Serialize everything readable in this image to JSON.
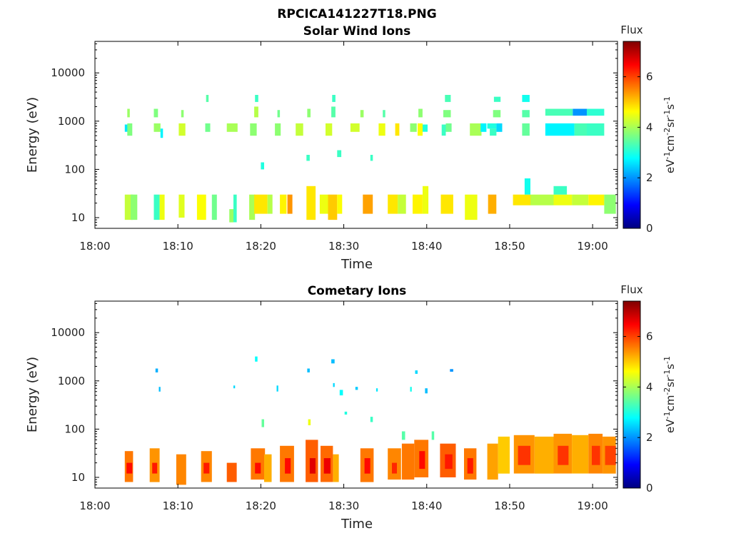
{
  "window": {
    "title": "RPCICA141227T18.PNG"
  },
  "colors": {
    "colormap": [
      "#00007f",
      "#0000ff",
      "#007fff",
      "#00ffff",
      "#7fff7f",
      "#ffff00",
      "#ff7f00",
      "#ff0000",
      "#7f0000"
    ],
    "frame": "#000000",
    "background": "#ffffff"
  },
  "chart_data": [
    {
      "type": "heatmap",
      "title": "Solar Wind Ions",
      "xlabel": "Time",
      "ylabel": "Energy (eV)",
      "x_unit": "minutes after 18:00",
      "xlim": [
        0,
        63
      ],
      "xticks": [
        0,
        10,
        20,
        30,
        40,
        50,
        60
      ],
      "xtick_labels": [
        "18:00",
        "18:10",
        "18:20",
        "18:30",
        "18:40",
        "18:50",
        "19:00"
      ],
      "y_scale": "log",
      "ylim": [
        6,
        45000
      ],
      "yticks": [
        10,
        100,
        1000,
        10000
      ],
      "ytick_labels": [
        "10",
        "100",
        "1000",
        "10000"
      ],
      "colorbar": {
        "label": "Flux",
        "unit_label": "eV-1cm-2sr-1s-1",
        "range": [
          0,
          7.4
        ],
        "ticks": [
          0,
          2,
          4,
          6
        ],
        "tick_labels": [
          "0",
          "2",
          "4",
          "6"
        ]
      },
      "cells": [
        [
          3.6,
          4.6,
          9,
          30,
          4.2
        ],
        [
          4.3,
          5.1,
          9,
          30,
          3.8
        ],
        [
          7.1,
          7.8,
          9,
          30,
          3.2
        ],
        [
          7.8,
          8.4,
          9,
          30,
          4.5
        ],
        [
          10.1,
          10.8,
          10,
          30,
          4.4
        ],
        [
          12.3,
          13.4,
          9,
          30,
          4.6
        ],
        [
          14.1,
          14.7,
          9,
          30,
          3.6
        ],
        [
          16.2,
          16.7,
          8,
          15,
          3.9
        ],
        [
          16.7,
          17.1,
          8,
          30,
          3.2
        ],
        [
          18.6,
          19.3,
          9,
          30,
          4.0
        ],
        [
          19.2,
          20.8,
          12,
          30,
          4.8
        ],
        [
          20.8,
          21.4,
          12,
          30,
          4.1
        ],
        [
          22.3,
          23.1,
          12,
          30,
          4.7
        ],
        [
          23.2,
          23.8,
          12,
          30,
          5.4
        ],
        [
          25.5,
          26.6,
          9,
          45,
          4.8
        ],
        [
          27.1,
          28.1,
          12,
          30,
          4.5
        ],
        [
          28.1,
          29.2,
          9,
          30,
          5.0
        ],
        [
          29.2,
          29.8,
          12,
          30,
          4.6
        ],
        [
          32.3,
          33.5,
          12,
          30,
          5.3
        ],
        [
          35.3,
          36.5,
          12,
          30,
          4.8
        ],
        [
          36.5,
          37.5,
          12,
          30,
          4.2
        ],
        [
          38.3,
          39.5,
          12,
          30,
          4.7
        ],
        [
          39.5,
          40.2,
          12,
          45,
          4.5
        ],
        [
          41.7,
          43.2,
          12,
          30,
          4.8
        ],
        [
          44.6,
          46.1,
          9,
          30,
          4.5
        ],
        [
          47.4,
          48.4,
          12,
          30,
          5.2
        ],
        [
          50.4,
          52.5,
          18,
          30,
          4.8
        ],
        [
          52.5,
          55.3,
          18,
          30,
          4.1
        ],
        [
          55.3,
          57.5,
          18,
          30,
          4.5
        ],
        [
          57.5,
          59.5,
          18,
          30,
          4.2
        ],
        [
          59.5,
          61.4,
          18,
          30,
          4.7
        ],
        [
          61.4,
          62.8,
          12,
          30,
          3.8
        ],
        [
          51.8,
          52.5,
          30,
          65,
          2.9
        ],
        [
          55.3,
          56.9,
          30,
          45,
          3.2
        ],
        [
          3.6,
          4.0,
          600,
          850,
          2.6
        ],
        [
          3.9,
          4.5,
          500,
          900,
          3.7
        ],
        [
          3.9,
          4.2,
          1200,
          1800,
          3.9
        ],
        [
          7.1,
          7.9,
          600,
          900,
          3.9
        ],
        [
          7.1,
          7.6,
          1200,
          1800,
          3.7
        ],
        [
          7.9,
          8.2,
          450,
          700,
          2.7
        ],
        [
          10.1,
          10.9,
          500,
          900,
          4.3
        ],
        [
          10.4,
          10.7,
          1200,
          1700,
          3.8
        ],
        [
          13.3,
          13.9,
          600,
          900,
          3.6
        ],
        [
          13.4,
          13.7,
          2500,
          3500,
          3.4
        ],
        [
          15.9,
          17.2,
          600,
          900,
          4.0
        ],
        [
          18.7,
          19.5,
          500,
          900,
          3.8
        ],
        [
          19.2,
          19.7,
          1200,
          2000,
          4.1
        ],
        [
          19.3,
          19.7,
          2500,
          3500,
          3.2
        ],
        [
          21.7,
          22.4,
          500,
          900,
          3.8
        ],
        [
          22.0,
          22.3,
          1200,
          1700,
          3.6
        ],
        [
          24.2,
          25.1,
          500,
          900,
          4.2
        ],
        [
          25.6,
          26.0,
          1200,
          1800,
          3.8
        ],
        [
          27.8,
          28.6,
          500,
          900,
          4.3
        ],
        [
          28.5,
          29.0,
          1200,
          2000,
          3.4
        ],
        [
          28.6,
          29.0,
          2500,
          3500,
          3.2
        ],
        [
          30.8,
          31.9,
          600,
          900,
          4.3
        ],
        [
          32.0,
          32.4,
          1200,
          1700,
          3.9
        ],
        [
          34.2,
          35.0,
          500,
          900,
          4.5
        ],
        [
          34.7,
          35.0,
          1200,
          1700,
          3.4
        ],
        [
          36.2,
          36.7,
          500,
          900,
          4.8
        ],
        [
          38.0,
          38.8,
          600,
          900,
          3.8
        ],
        [
          38.9,
          39.5,
          500,
          900,
          4.6
        ],
        [
          39.0,
          39.5,
          1200,
          1800,
          3.8
        ],
        [
          39.5,
          40.1,
          600,
          850,
          3.0
        ],
        [
          42.0,
          42.9,
          1200,
          1700,
          3.7
        ],
        [
          42.2,
          42.9,
          2500,
          3500,
          3.3
        ],
        [
          41.8,
          42.3,
          500,
          850,
          3.2
        ],
        [
          42.3,
          43.0,
          600,
          900,
          3.6
        ],
        [
          45.2,
          46.6,
          500,
          900,
          4.0
        ],
        [
          46.5,
          47.2,
          600,
          900,
          2.7
        ],
        [
          47.3,
          48.4,
          700,
          900,
          3.0
        ],
        [
          47.6,
          48.4,
          500,
          700,
          3.2
        ],
        [
          48.4,
          49.1,
          600,
          900,
          2.5
        ],
        [
          48.0,
          48.9,
          1200,
          1700,
          3.7
        ],
        [
          48.1,
          48.9,
          2500,
          3200,
          3.2
        ],
        [
          51.5,
          52.4,
          500,
          900,
          3.5
        ],
        [
          51.5,
          52.4,
          1200,
          1700,
          3.4
        ],
        [
          51.5,
          52.4,
          2500,
          3500,
          2.9
        ],
        [
          54.3,
          57.8,
          500,
          900,
          2.7
        ],
        [
          57.8,
          59.3,
          500,
          900,
          3.3
        ],
        [
          59.3,
          61.4,
          500,
          900,
          3.2
        ],
        [
          54.3,
          57.6,
          1300,
          1800,
          3.3
        ],
        [
          57.6,
          59.3,
          1300,
          1800,
          2.0
        ],
        [
          59.3,
          61.4,
          1300,
          1800,
          3.1
        ],
        [
          25.5,
          25.9,
          150,
          200,
          3.2
        ],
        [
          20.0,
          20.4,
          100,
          140,
          3.0
        ],
        [
          29.2,
          29.7,
          180,
          250,
          3.2
        ],
        [
          33.2,
          33.5,
          150,
          200,
          3.2
        ]
      ]
    },
    {
      "type": "heatmap",
      "title": "Cometary Ions",
      "xlabel": "Time",
      "ylabel": "Energy (eV)",
      "x_unit": "minutes after 18:00",
      "xlim": [
        0,
        63
      ],
      "xticks": [
        0,
        10,
        20,
        30,
        40,
        50,
        60
      ],
      "xtick_labels": [
        "18:00",
        "18:10",
        "18:20",
        "18:30",
        "18:40",
        "18:50",
        "19:00"
      ],
      "y_scale": "log",
      "ylim": [
        6,
        45000
      ],
      "yticks": [
        10,
        100,
        1000,
        10000
      ],
      "ytick_labels": [
        "10",
        "100",
        "1000",
        "10000"
      ],
      "colorbar": {
        "label": "Flux",
        "unit_label": "eV-1cm-2sr-1s-1",
        "range": [
          0,
          7.4
        ],
        "ticks": [
          0,
          2,
          4,
          6
        ],
        "tick_labels": [
          "0",
          "2",
          "4",
          "6"
        ]
      },
      "cells": [
        [
          3.6,
          4.6,
          8,
          35,
          5.6
        ],
        [
          3.8,
          4.5,
          12,
          20,
          6.4
        ],
        [
          6.6,
          7.8,
          8,
          40,
          5.4
        ],
        [
          6.9,
          7.5,
          12,
          20,
          6.3
        ],
        [
          9.8,
          11.0,
          7,
          30,
          5.5
        ],
        [
          12.8,
          14.1,
          8,
          35,
          5.5
        ],
        [
          13.1,
          13.8,
          12,
          20,
          6.3
        ],
        [
          15.9,
          17.1,
          8,
          20,
          5.8
        ],
        [
          18.8,
          20.5,
          9,
          40,
          5.6
        ],
        [
          19.3,
          20.0,
          12,
          20,
          6.4
        ],
        [
          20.4,
          21.3,
          8,
          30,
          5.2
        ],
        [
          22.3,
          24.0,
          8,
          45,
          5.6
        ],
        [
          22.9,
          23.6,
          12,
          25,
          6.4
        ],
        [
          25.4,
          26.9,
          8,
          60,
          5.8
        ],
        [
          25.9,
          26.6,
          12,
          25,
          6.7
        ],
        [
          27.2,
          28.7,
          8,
          45,
          5.7
        ],
        [
          27.6,
          28.4,
          12,
          25,
          6.6
        ],
        [
          28.7,
          29.4,
          8,
          30,
          5.2
        ],
        [
          32.0,
          33.6,
          8,
          40,
          5.6
        ],
        [
          32.5,
          33.2,
          12,
          25,
          6.4
        ],
        [
          35.3,
          36.9,
          9,
          40,
          5.5
        ],
        [
          35.8,
          36.4,
          12,
          20,
          6.2
        ],
        [
          37.0,
          38.5,
          9,
          50,
          5.6
        ],
        [
          38.5,
          40.2,
          10,
          60,
          5.6
        ],
        [
          39.1,
          39.8,
          15,
          35,
          6.4
        ],
        [
          41.6,
          43.5,
          10,
          50,
          5.8
        ],
        [
          42.2,
          43.1,
          15,
          30,
          6.3
        ],
        [
          44.5,
          46.0,
          9,
          40,
          5.6
        ],
        [
          44.9,
          45.6,
          12,
          25,
          6.3
        ],
        [
          47.3,
          48.6,
          9,
          50,
          5.3
        ],
        [
          48.6,
          50.0,
          12,
          70,
          5.0
        ],
        [
          50.5,
          53.0,
          12,
          75,
          5.4
        ],
        [
          51.0,
          52.5,
          18,
          45,
          6.1
        ],
        [
          53.0,
          55.3,
          12,
          70,
          5.2
        ],
        [
          55.3,
          57.5,
          12,
          80,
          5.4
        ],
        [
          55.8,
          57.1,
          18,
          45,
          6.1
        ],
        [
          57.5,
          59.5,
          12,
          75,
          5.2
        ],
        [
          59.5,
          61.2,
          12,
          80,
          5.5
        ],
        [
          59.9,
          60.9,
          18,
          45,
          6.1
        ],
        [
          61.2,
          62.8,
          12,
          70,
          5.4
        ],
        [
          61.5,
          62.8,
          18,
          45,
          6.0
        ],
        [
          7.3,
          7.6,
          1500,
          1800,
          2.2
        ],
        [
          7.7,
          7.9,
          600,
          750,
          2.3
        ],
        [
          16.7,
          16.9,
          700,
          800,
          2.5
        ],
        [
          19.3,
          19.6,
          2500,
          3200,
          2.8
        ],
        [
          21.9,
          22.1,
          600,
          800,
          2.5
        ],
        [
          25.6,
          25.9,
          1500,
          1800,
          2.3
        ],
        [
          28.5,
          28.9,
          2300,
          2800,
          2.3
        ],
        [
          28.7,
          28.9,
          750,
          900,
          2.5
        ],
        [
          29.5,
          29.9,
          500,
          650,
          2.8
        ],
        [
          30.1,
          30.4,
          200,
          230,
          3.0
        ],
        [
          31.4,
          31.7,
          650,
          750,
          2.4
        ],
        [
          33.9,
          34.1,
          600,
          700,
          2.6
        ],
        [
          38.0,
          38.2,
          600,
          750,
          2.9
        ],
        [
          38.6,
          38.9,
          1400,
          1650,
          2.5
        ],
        [
          39.8,
          40.1,
          550,
          700,
          2.3
        ],
        [
          42.8,
          43.2,
          1550,
          1750,
          2.0
        ],
        [
          20.1,
          20.4,
          110,
          160,
          3.5
        ],
        [
          25.7,
          26.0,
          120,
          160,
          4.5
        ],
        [
          33.2,
          33.5,
          140,
          180,
          3.2
        ],
        [
          37.0,
          37.4,
          60,
          90,
          3.4
        ],
        [
          40.6,
          40.9,
          60,
          90,
          3.4
        ]
      ]
    }
  ]
}
